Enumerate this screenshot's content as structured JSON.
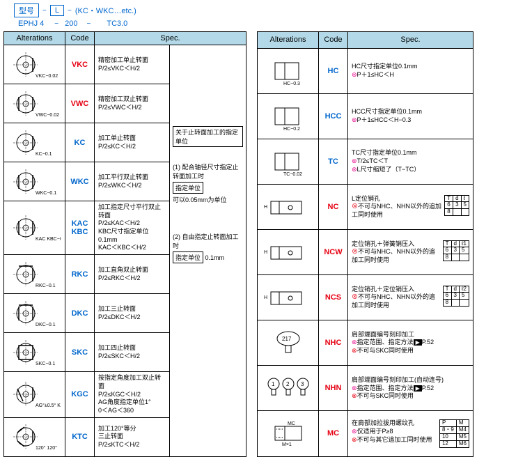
{
  "header": {
    "box1": "型号",
    "box2": "L",
    "suffix": "(KC・WKC…etc.)",
    "line2_a": "EPHJ 4",
    "line2_b": "200",
    "line2_c": "TC3.0"
  },
  "cols": {
    "alt": "Alterations",
    "code": "Code",
    "spec": "Spec."
  },
  "left": [
    {
      "code": "VKC",
      "codeColor": "#e60012",
      "spec": "精密加工单止转面\nP/2≤VKC＜H/2",
      "label": "VKC−0.02"
    },
    {
      "code": "VWC",
      "codeColor": "#e60012",
      "spec": "精密加工双止转面\nP/2≤VWC＜H/2",
      "label": "VWC−0.02"
    },
    {
      "code": "KC",
      "codeColor": "#0066cc",
      "spec": "加工单止转面\nP/2≤KC＜H/2",
      "label": "KC−0.1"
    },
    {
      "code": "WKC",
      "codeColor": "#0066cc",
      "spec": "加工平行双止转面\nP/2≤WKC＜H/2",
      "label": "WKC−0.1"
    },
    {
      "code": "KAC\nKBC",
      "codeColor": "#0066cc",
      "spec": "加工指定尺寸平行双止转面\nP/2≤KAC＜H/2\nKBC尺寸指定单位0.1mm\nKAC＜KBC＜H/2",
      "label": "KAC  KBC−0.1"
    },
    {
      "code": "RKC",
      "codeColor": "#0066cc",
      "spec": "加工直角双止转面\nP/2≤RKC＜H/2",
      "label": "RKC−0.1"
    },
    {
      "code": "DKC",
      "codeColor": "#0066cc",
      "spec": "加工三止转面\nP/2≤DKC＜H/2",
      "label": "DKC−0.1"
    },
    {
      "code": "SKC",
      "codeColor": "#0066cc",
      "spec": "加工四止转面\nP/2≤SKC＜H/2",
      "label": "SKC−0.1"
    },
    {
      "code": "KGC",
      "codeColor": "#0066cc",
      "spec": "按指定角度加工双止转面\nP/2≤KGC＜H/2\nAG角度指定单位1°\n0＜AG＜360",
      "label": "AG°±0.5° KGC−0.1"
    },
    {
      "code": "KTC",
      "codeColor": "#0066cc",
      "spec": "加工120°等分\n三止转面\nP/2≤KTC＜H/2",
      "label": "120° 120°"
    }
  ],
  "leftNote": {
    "title": "关于止转面加工的指定单位",
    "p1": "(1) 配合轴径尺寸指定止转面加工时",
    "u1": "指定单位",
    "p1b": "可以0.05mm为单位",
    "p2": "(2) 自由指定止转面加工时",
    "u2": "指定单位",
    "p2b": "0.1mm"
  },
  "right": [
    {
      "code": "HC",
      "cc": "#0066cc",
      "spec": "HC尺寸指定单位0.1mm\n⊛P＋1≤HC＜H",
      "label": "HC−0.3"
    },
    {
      "code": "HCC",
      "cc": "#0066cc",
      "spec": "HCC尺寸指定单位0.1mm\n⊛P＋1≤HCC＜H−0.3",
      "label": "HC−0.2"
    },
    {
      "code": "TC",
      "cc": "#0066cc",
      "spec": "TC尺寸指定单位0.1mm\n⊛T/2≤TC＜T\n⊛L尺寸缩短了（T−TC）",
      "label": "TC−0.02"
    },
    {
      "code": "NC",
      "cc": "#e60012",
      "spec": "L定位销孔\n⊗不可与NHC、NHN以外的追加工同时使用",
      "label": "",
      "tbl": [
        [
          "T",
          "d",
          "ℓ"
        ],
        [
          "6",
          "3",
          "5"
        ],
        [
          "8",
          "",
          ""
        ]
      ]
    },
    {
      "code": "NCW",
      "cc": "#e60012",
      "spec": "定位销孔＋弹簧销压入\n⊗不可与NHC、NHN以外的追加工同时使用",
      "label": "",
      "tbl": [
        [
          "T",
          "d",
          "ℓ1"
        ],
        [
          "6",
          "3",
          "5"
        ],
        [
          "8",
          "",
          ""
        ]
      ]
    },
    {
      "code": "NCS",
      "cc": "#e60012",
      "spec": "定位销孔＋定位销压入\n⊗不可与NHC、NHN以外的追加工同时使用",
      "label": "",
      "tbl": [
        [
          "T",
          "d",
          "ℓ2"
        ],
        [
          "6",
          "3",
          "5"
        ],
        [
          "8",
          "",
          ""
        ]
      ]
    },
    {
      "code": "NHC",
      "cc": "#e60012",
      "spec": "肩部端面编号刻印加工\n⊛指定范围、指定方法▶P.52\n⊗不可与SKC同时使用",
      "label": "217"
    },
    {
      "code": "NHN",
      "cc": "#e60012",
      "spec": "肩部端面编号刻印加工(自动连号)\n⊛指定范围、指定方法▶P.52\n⊗不可与SKC同时使用",
      "label": "① ② ③"
    },
    {
      "code": "MC",
      "cc": "#e60012",
      "spec": "在肩部加拉拔用螺纹孔\n⊛仅适用于P≥8\n⊗不可与其它追加工同时使用",
      "label": "MC M×1",
      "tbl": [
        [
          "P",
          "M"
        ],
        [
          "8・9",
          "M4"
        ],
        [
          "10",
          "M5"
        ],
        [
          "12",
          "M6"
        ]
      ]
    }
  ]
}
